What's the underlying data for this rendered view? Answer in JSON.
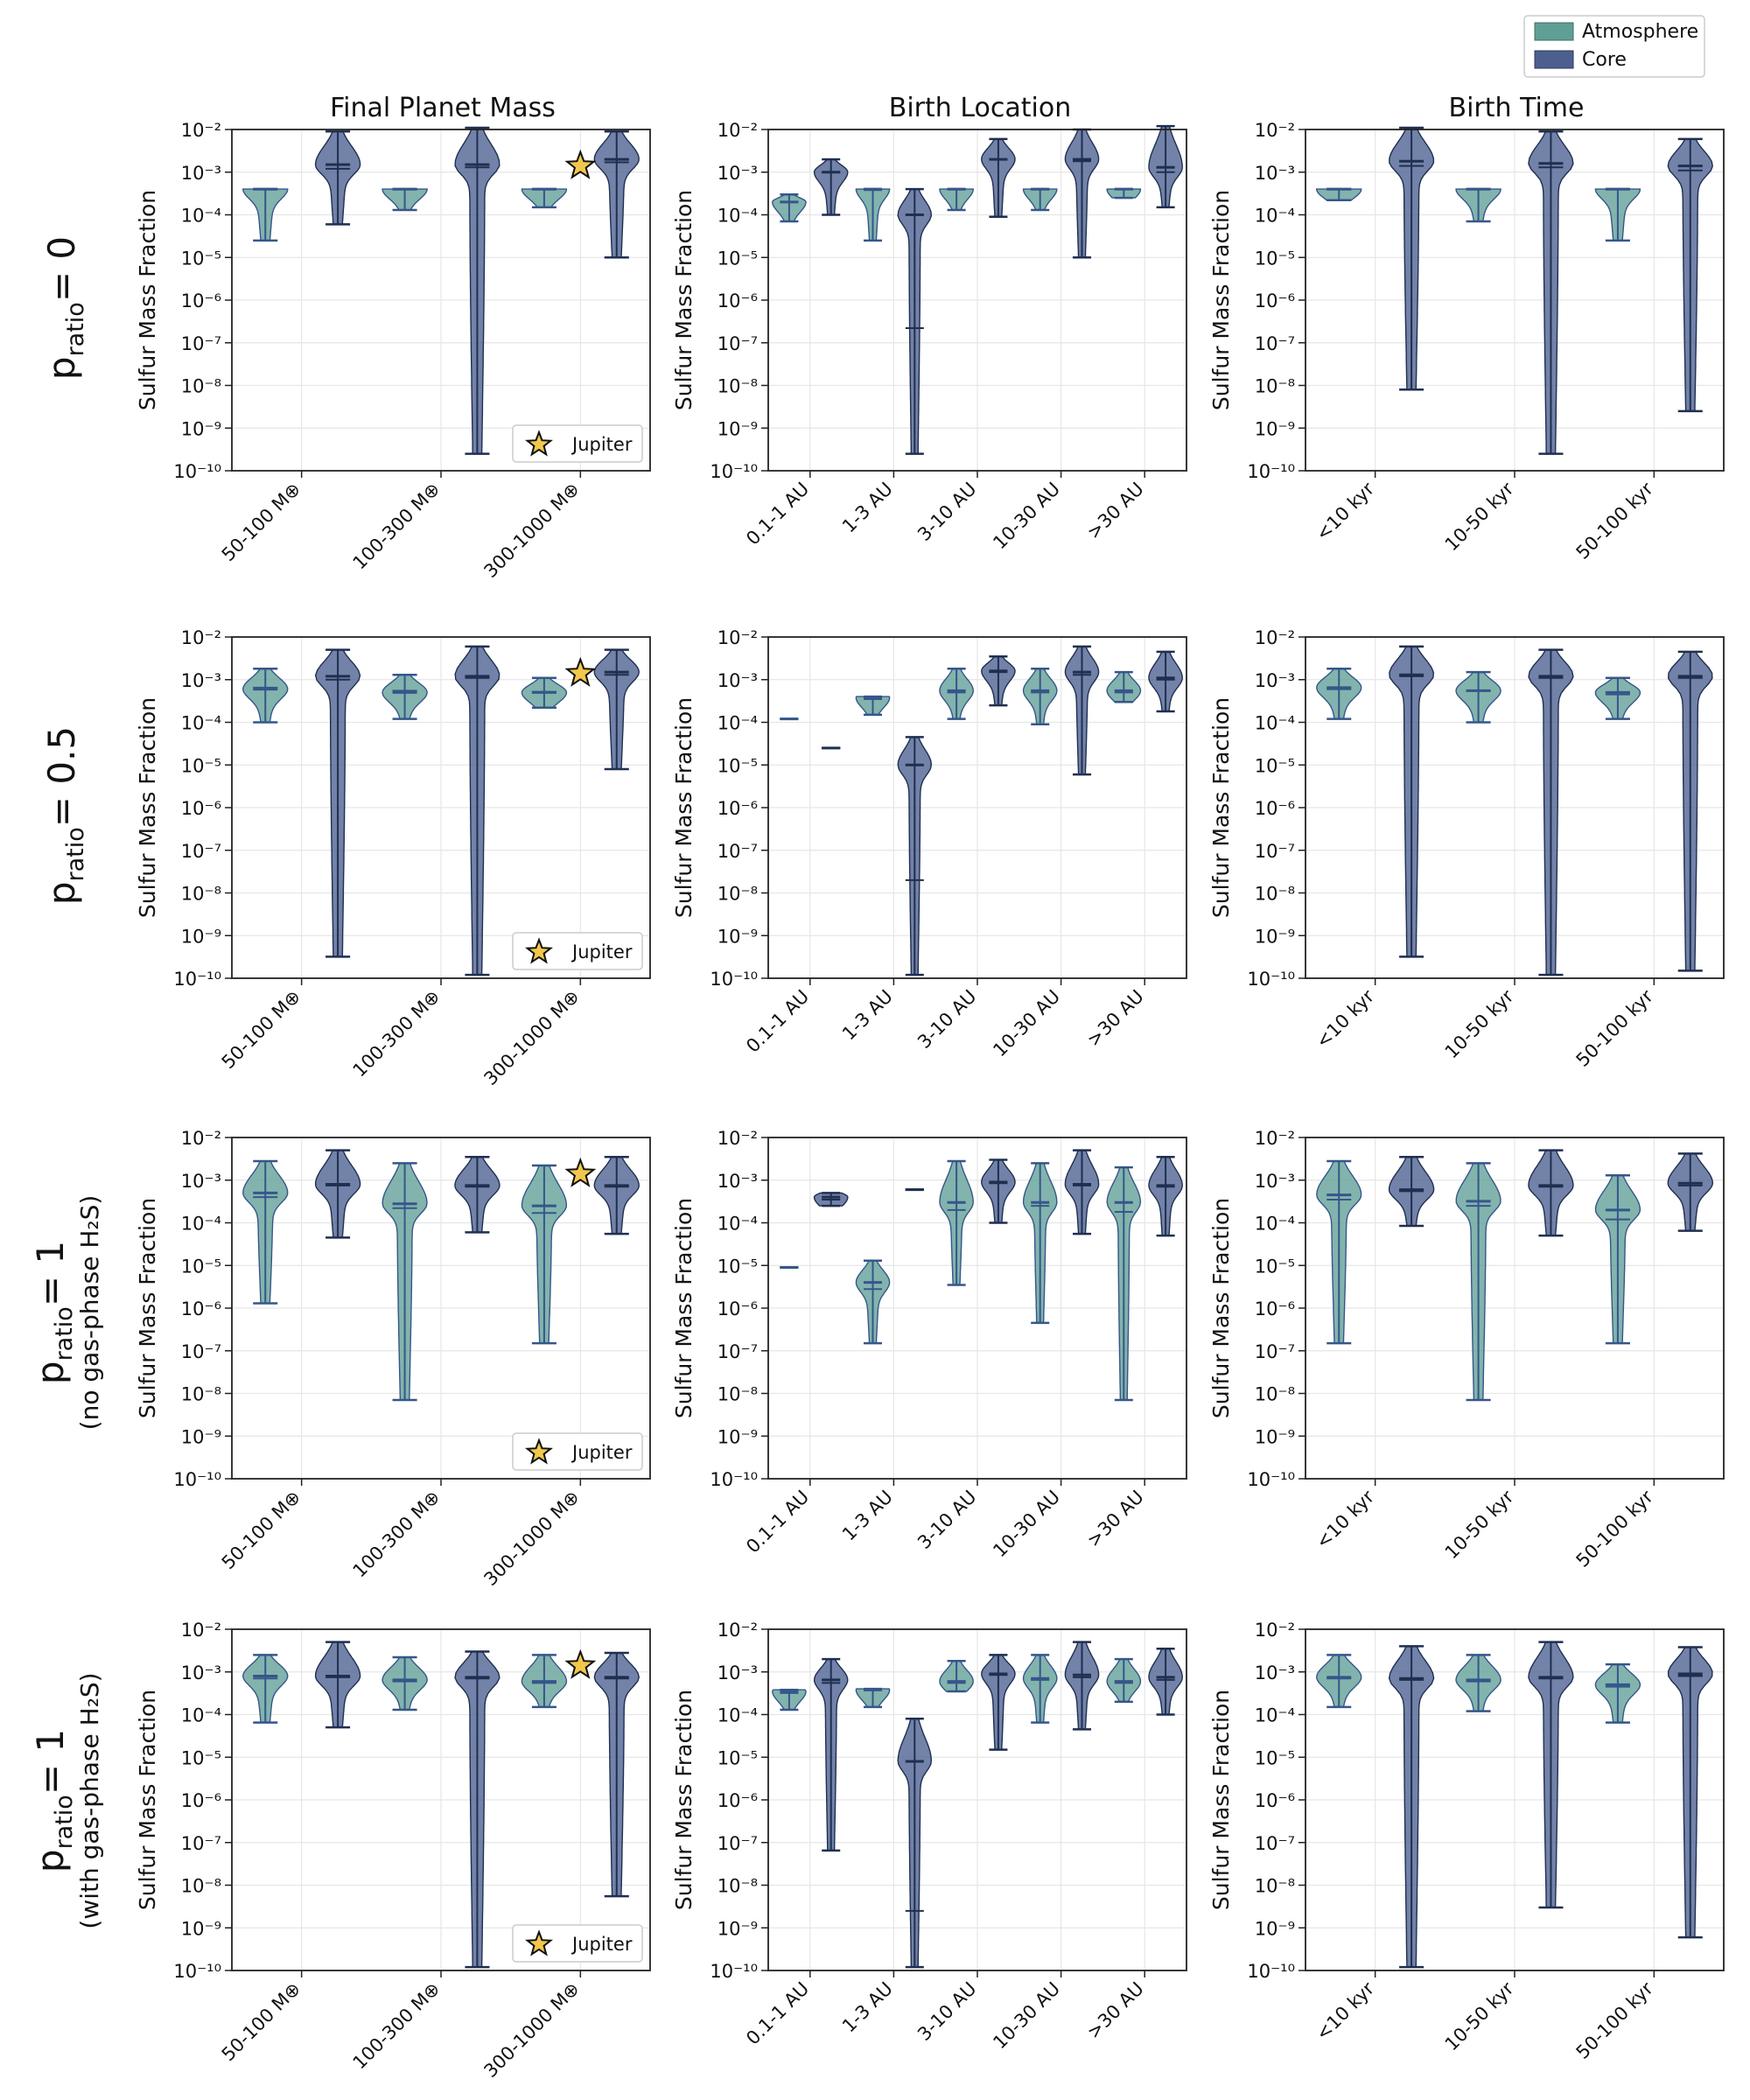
{
  "figure": {
    "legend": {
      "entries": [
        {
          "label": "Atmosphere",
          "color": "#5f9f96"
        },
        {
          "label": "Core",
          "color": "#4c5f8f"
        }
      ]
    },
    "column_titles": [
      "Final Planet Mass",
      "Birth Location",
      "Birth Time"
    ],
    "row_labels": [
      {
        "main": "p",
        "sub": "ratio",
        "rest": "= 0",
        "note": ""
      },
      {
        "main": "p",
        "sub": "ratio",
        "rest": "= 0.5",
        "note": ""
      },
      {
        "main": "p",
        "sub": "ratio",
        "rest": "= 1",
        "note": "(no gas-phase H₂S)"
      },
      {
        "main": "p",
        "sub": "ratio",
        "rest": "= 1",
        "note": "(with gas-phase H₂S)"
      }
    ],
    "ylabel": "Sulfur Mass Fraction",
    "yticks": [
      "10⁻²",
      "10⁻³",
      "10⁻⁴",
      "10⁻⁵",
      "10⁻⁶",
      "10⁻⁷",
      "10⁻⁸",
      "10⁻⁹",
      "10⁻¹⁰"
    ],
    "jupiter_label": "Jupiter",
    "colors": {
      "atmosphere": "#5f9f96",
      "core": "#4c5f8f",
      "atm_line": "#36568a",
      "core_line": "#1f2f50",
      "star": "#f2c84b"
    }
  },
  "chart_data": [
    {
      "type": "violin",
      "row": 0,
      "col": 0,
      "title": "Final Planet Mass",
      "ylabel": "Sulfur Mass Fraction",
      "yscale": "log",
      "ylim": [
        1e-10,
        0.01
      ],
      "categories": [
        "50-100 M⊕",
        "100-300 M⊕",
        "300-1000 M⊕"
      ],
      "jupiter": {
        "category": "300-1000 M⊕",
        "value": 0.0014
      },
      "atmosphere": [
        {
          "min": 2.5e-05,
          "max": 0.0004,
          "median": 0.0004,
          "mean": 0.00039
        },
        {
          "min": 0.00013,
          "max": 0.0004,
          "median": 0.0004,
          "mean": 0.00039
        },
        {
          "min": 0.00015,
          "max": 0.0004,
          "median": 0.0004,
          "mean": 0.00039
        }
      ],
      "core": [
        {
          "min": 6e-05,
          "max": 0.009,
          "median": 0.0015,
          "mean": 0.0012
        },
        {
          "min": 2.5e-10,
          "max": 0.011,
          "median": 0.0015,
          "mean": 0.0013
        },
        {
          "min": 1e-05,
          "max": 0.009,
          "median": 0.002,
          "mean": 0.0017
        }
      ]
    },
    {
      "type": "violin",
      "row": 0,
      "col": 1,
      "title": "Birth Location",
      "ylabel": "Sulfur Mass Fraction",
      "yscale": "log",
      "ylim": [
        1e-10,
        0.01
      ],
      "categories": [
        "0.1-1 AU",
        "1-3 AU",
        "3-10 AU",
        "10-30 AU",
        ">30 AU"
      ],
      "atmosphere": [
        {
          "min": 7e-05,
          "max": 0.0003,
          "median": 0.0002,
          "mean": 0.0002
        },
        {
          "min": 2.5e-05,
          "max": 0.0004,
          "median": 0.0004,
          "mean": 0.00038
        },
        {
          "min": 0.00013,
          "max": 0.0004,
          "median": 0.0004,
          "mean": 0.00039
        },
        {
          "min": 0.00013,
          "max": 0.0004,
          "median": 0.0004,
          "mean": 0.00039
        },
        {
          "min": 0.00025,
          "max": 0.0004,
          "median": 0.0004,
          "mean": 0.0004
        }
      ],
      "core": [
        {
          "min": 0.0001,
          "max": 0.002,
          "median": 0.001,
          "mean": 0.001
        },
        {
          "min": 2.5e-10,
          "max": 0.0004,
          "median": 0.0001,
          "mean": 2.2e-07
        },
        {
          "min": 9e-05,
          "max": 0.006,
          "median": 0.002,
          "mean": 0.002
        },
        {
          "min": 1e-05,
          "max": 0.01,
          "median": 0.002,
          "mean": 0.0018
        },
        {
          "min": 0.00015,
          "max": 0.012,
          "median": 0.0013,
          "mean": 0.001
        }
      ]
    },
    {
      "type": "violin",
      "row": 0,
      "col": 2,
      "title": "Birth Time",
      "ylabel": "Sulfur Mass Fraction",
      "yscale": "log",
      "ylim": [
        1e-10,
        0.01
      ],
      "categories": [
        "<10 kyr",
        "10-50 kyr",
        "50-100 kyr"
      ],
      "atmosphere": [
        {
          "min": 0.00022,
          "max": 0.0004,
          "median": 0.0004,
          "mean": 0.00039
        },
        {
          "min": 7e-05,
          "max": 0.0004,
          "median": 0.0004,
          "mean": 0.00039
        },
        {
          "min": 2.5e-05,
          "max": 0.0004,
          "median": 0.0004,
          "mean": 0.00039
        }
      ],
      "core": [
        {
          "min": 8e-09,
          "max": 0.011,
          "median": 0.0018,
          "mean": 0.0014
        },
        {
          "min": 2.5e-10,
          "max": 0.009,
          "median": 0.0016,
          "mean": 0.0013
        },
        {
          "min": 2.5e-09,
          "max": 0.006,
          "median": 0.0014,
          "mean": 0.0011
        }
      ]
    },
    {
      "type": "violin",
      "row": 1,
      "col": 0,
      "title": "Final Planet Mass",
      "ylabel": "Sulfur Mass Fraction",
      "yscale": "log",
      "ylim": [
        1e-10,
        0.01
      ],
      "categories": [
        "50-100 M⊕",
        "100-300 M⊕",
        "300-1000 M⊕"
      ],
      "jupiter": {
        "category": "300-1000 M⊕",
        "value": 0.0014
      },
      "atmosphere": [
        {
          "min": 0.0001,
          "max": 0.0018,
          "median": 0.0006,
          "mean": 0.00065
        },
        {
          "min": 0.00012,
          "max": 0.0013,
          "median": 0.0005,
          "mean": 0.00055
        },
        {
          "min": 0.00022,
          "max": 0.0011,
          "median": 0.0005,
          "mean": 0.00052
        }
      ],
      "core": [
        {
          "min": 3.2e-10,
          "max": 0.005,
          "median": 0.0012,
          "mean": 0.001
        },
        {
          "min": 1.2e-10,
          "max": 0.006,
          "median": 0.0012,
          "mean": 0.0011
        },
        {
          "min": 8e-06,
          "max": 0.005,
          "median": 0.0015,
          "mean": 0.0013
        }
      ]
    },
    {
      "type": "violin",
      "row": 1,
      "col": 1,
      "title": "Birth Location",
      "ylabel": "Sulfur Mass Fraction",
      "yscale": "log",
      "ylim": [
        1e-10,
        0.01
      ],
      "categories": [
        "0.1-1 AU",
        "1-3 AU",
        "3-10 AU",
        "10-30 AU",
        ">30 AU"
      ],
      "atmosphere": [
        {
          "min": 0.00012,
          "max": 0.00012,
          "median": 0.00012,
          "mean": 0.00012
        },
        {
          "min": 0.00015,
          "max": 0.0004,
          "median": 0.00038,
          "mean": 0.00035
        },
        {
          "min": 0.00012,
          "max": 0.0018,
          "median": 0.00055,
          "mean": 0.0005
        },
        {
          "min": 9e-05,
          "max": 0.0018,
          "median": 0.00055,
          "mean": 0.0005
        },
        {
          "min": 0.0003,
          "max": 0.0015,
          "median": 0.00055,
          "mean": 0.0005
        }
      ],
      "core": [
        {
          "min": 2.5e-05,
          "max": 2.5e-05,
          "median": 2.5e-05,
          "mean": 2.5e-05
        },
        {
          "min": 1.2e-10,
          "max": 4.5e-05,
          "median": 1e-05,
          "mean": 2e-08
        },
        {
          "min": 0.00025,
          "max": 0.0035,
          "median": 0.0016,
          "mean": 0.0015
        },
        {
          "min": 6e-06,
          "max": 0.006,
          "median": 0.0015,
          "mean": 0.0013
        },
        {
          "min": 0.00018,
          "max": 0.0045,
          "median": 0.0011,
          "mean": 0.001
        }
      ]
    },
    {
      "type": "violin",
      "row": 1,
      "col": 2,
      "title": "Birth Time",
      "ylabel": "Sulfur Mass Fraction",
      "yscale": "log",
      "ylim": [
        1e-10,
        0.01
      ],
      "categories": [
        "<10 kyr",
        "10-50 kyr",
        "50-100 kyr"
      ],
      "atmosphere": [
        {
          "min": 0.00012,
          "max": 0.0018,
          "median": 0.00065,
          "mean": 0.0006
        },
        {
          "min": 0.0001,
          "max": 0.0015,
          "median": 0.00055,
          "mean": 0.00055
        },
        {
          "min": 0.00012,
          "max": 0.0011,
          "median": 0.0005,
          "mean": 0.00045
        }
      ],
      "core": [
        {
          "min": 3.2e-10,
          "max": 0.006,
          "median": 0.0013,
          "mean": 0.0012
        },
        {
          "min": 1.2e-10,
          "max": 0.005,
          "median": 0.0012,
          "mean": 0.0011
        },
        {
          "min": 1.5e-10,
          "max": 0.0045,
          "median": 0.0012,
          "mean": 0.0011
        }
      ]
    },
    {
      "type": "violin",
      "row": 2,
      "col": 0,
      "title": "Final Planet Mass",
      "ylabel": "Sulfur Mass Fraction",
      "yscale": "log",
      "ylim": [
        1e-10,
        0.01
      ],
      "categories": [
        "50-100 M⊕",
        "100-300 M⊕",
        "300-1000 M⊕"
      ],
      "jupiter": {
        "category": "300-1000 M⊕",
        "value": 0.0014
      },
      "atmosphere": [
        {
          "min": 1.3e-06,
          "max": 0.0028,
          "median": 0.0005,
          "mean": 0.0004
        },
        {
          "min": 7e-09,
          "max": 0.0025,
          "median": 0.00028,
          "mean": 0.00022
        },
        {
          "min": 1.5e-07,
          "max": 0.0022,
          "median": 0.00025,
          "mean": 0.00017
        }
      ],
      "core": [
        {
          "min": 4.5e-05,
          "max": 0.005,
          "median": 0.0008,
          "mean": 0.00075
        },
        {
          "min": 6e-05,
          "max": 0.0035,
          "median": 0.00075,
          "mean": 0.0007
        },
        {
          "min": 5.5e-05,
          "max": 0.0035,
          "median": 0.00075,
          "mean": 0.0007
        }
      ]
    },
    {
      "type": "violin",
      "row": 2,
      "col": 1,
      "title": "Birth Location",
      "ylabel": "Sulfur Mass Fraction",
      "yscale": "log",
      "ylim": [
        1e-10,
        0.01
      ],
      "categories": [
        "0.1-1 AU",
        "1-3 AU",
        "3-10 AU",
        "10-30 AU",
        ">30 AU"
      ],
      "atmosphere": [
        {
          "min": 9e-06,
          "max": 9e-06,
          "median": 9e-06,
          "mean": 9e-06
        },
        {
          "min": 1.5e-07,
          "max": 1.3e-05,
          "median": 4e-06,
          "mean": 2.8e-06
        },
        {
          "min": 3.5e-06,
          "max": 0.0028,
          "median": 0.0003,
          "mean": 0.0002
        },
        {
          "min": 4.5e-07,
          "max": 0.0025,
          "median": 0.0003,
          "mean": 0.00025
        },
        {
          "min": 7e-09,
          "max": 0.002,
          "median": 0.0003,
          "mean": 0.00018
        }
      ],
      "core": [
        {
          "min": 0.00025,
          "max": 0.0005,
          "median": 0.0004,
          "mean": 0.00035
        },
        {
          "min": 0.0006,
          "max": 0.0006,
          "median": 0.0006,
          "mean": 0.0006
        },
        {
          "min": 0.0001,
          "max": 0.003,
          "median": 0.0009,
          "mean": 0.00085
        },
        {
          "min": 5.5e-05,
          "max": 0.005,
          "median": 0.0008,
          "mean": 0.00075
        },
        {
          "min": 5e-05,
          "max": 0.0035,
          "median": 0.00075,
          "mean": 0.0007
        }
      ]
    },
    {
      "type": "violin",
      "row": 2,
      "col": 2,
      "title": "Birth Time",
      "ylabel": "Sulfur Mass Fraction",
      "yscale": "log",
      "ylim": [
        1e-10,
        0.01
      ],
      "categories": [
        "<10 kyr",
        "10-50 kyr",
        "50-100 kyr"
      ],
      "atmosphere": [
        {
          "min": 1.5e-07,
          "max": 0.0028,
          "median": 0.00045,
          "mean": 0.00035
        },
        {
          "min": 7e-09,
          "max": 0.0025,
          "median": 0.00032,
          "mean": 0.00025
        },
        {
          "min": 1.5e-07,
          "max": 0.0013,
          "median": 0.0002,
          "mean": 0.00012
        }
      ],
      "core": [
        {
          "min": 8.5e-05,
          "max": 0.0035,
          "median": 0.0006,
          "mean": 0.00055
        },
        {
          "min": 5e-05,
          "max": 0.005,
          "median": 0.00075,
          "mean": 0.0007
        },
        {
          "min": 6.5e-05,
          "max": 0.0042,
          "median": 0.00085,
          "mean": 0.00075
        }
      ]
    },
    {
      "type": "violin",
      "row": 3,
      "col": 0,
      "title": "Final Planet Mass",
      "ylabel": "Sulfur Mass Fraction",
      "yscale": "log",
      "ylim": [
        1e-10,
        0.01
      ],
      "categories": [
        "50-100 M⊕",
        "100-300 M⊕",
        "300-1000 M⊕"
      ],
      "jupiter": {
        "category": "300-1000 M⊕",
        "value": 0.0014
      },
      "atmosphere": [
        {
          "min": 6.5e-05,
          "max": 0.0025,
          "median": 0.0008,
          "mean": 0.0007
        },
        {
          "min": 0.00013,
          "max": 0.0022,
          "median": 0.00065,
          "mean": 0.0006
        },
        {
          "min": 0.00015,
          "max": 0.0025,
          "median": 0.0006,
          "mean": 0.00055
        }
      ],
      "core": [
        {
          "min": 5e-05,
          "max": 0.005,
          "median": 0.0008,
          "mean": 0.00075
        },
        {
          "min": 1.2e-10,
          "max": 0.003,
          "median": 0.00075,
          "mean": 0.0007
        },
        {
          "min": 5.5e-09,
          "max": 0.0028,
          "median": 0.00075,
          "mean": 0.0007
        }
      ]
    },
    {
      "type": "violin",
      "row": 3,
      "col": 1,
      "title": "Birth Location",
      "ylabel": "Sulfur Mass Fraction",
      "yscale": "log",
      "ylim": [
        1e-10,
        0.01
      ],
      "categories": [
        "0.1-1 AU",
        "1-3 AU",
        "3-10 AU",
        "10-30 AU",
        ">30 AU"
      ],
      "atmosphere": [
        {
          "min": 0.00013,
          "max": 0.00038,
          "median": 0.00035,
          "mean": 0.00032
        },
        {
          "min": 0.00015,
          "max": 0.0004,
          "median": 0.00038,
          "mean": 0.00037
        },
        {
          "min": 0.00035,
          "max": 0.0018,
          "median": 0.0006,
          "mean": 0.00055
        },
        {
          "min": 6.5e-05,
          "max": 0.0025,
          "median": 0.0007,
          "mean": 0.00065
        },
        {
          "min": 0.0002,
          "max": 0.002,
          "median": 0.0006,
          "mean": 0.00055
        }
      ],
      "core": [
        {
          "min": 6.5e-08,
          "max": 0.002,
          "median": 0.00065,
          "mean": 0.00055
        },
        {
          "min": 1.2e-10,
          "max": 8e-05,
          "median": 8e-06,
          "mean": 2.5e-09
        },
        {
          "min": 1.5e-05,
          "max": 0.0025,
          "median": 0.0009,
          "mean": 0.00085
        },
        {
          "min": 4.5e-05,
          "max": 0.005,
          "median": 0.00085,
          "mean": 0.00075
        },
        {
          "min": 0.0001,
          "max": 0.0035,
          "median": 0.00075,
          "mean": 0.00065
        }
      ]
    },
    {
      "type": "violin",
      "row": 3,
      "col": 2,
      "title": "Birth Time",
      "ylabel": "Sulfur Mass Fraction",
      "yscale": "log",
      "ylim": [
        1e-10,
        0.01
      ],
      "categories": [
        "<10 kyr",
        "10-50 kyr",
        "50-100 kyr"
      ],
      "atmosphere": [
        {
          "min": 0.00015,
          "max": 0.0025,
          "median": 0.00075,
          "mean": 0.0007
        },
        {
          "min": 0.00012,
          "max": 0.0025,
          "median": 0.00065,
          "mean": 0.0006
        },
        {
          "min": 6.5e-05,
          "max": 0.0015,
          "median": 0.0005,
          "mean": 0.00045
        }
      ],
      "core": [
        {
          "min": 1.2e-10,
          "max": 0.004,
          "median": 0.0007,
          "mean": 0.00065
        },
        {
          "min": 3e-09,
          "max": 0.005,
          "median": 0.00075,
          "mean": 0.0007
        },
        {
          "min": 6e-10,
          "max": 0.0038,
          "median": 0.0009,
          "mean": 0.0008
        }
      ]
    }
  ]
}
